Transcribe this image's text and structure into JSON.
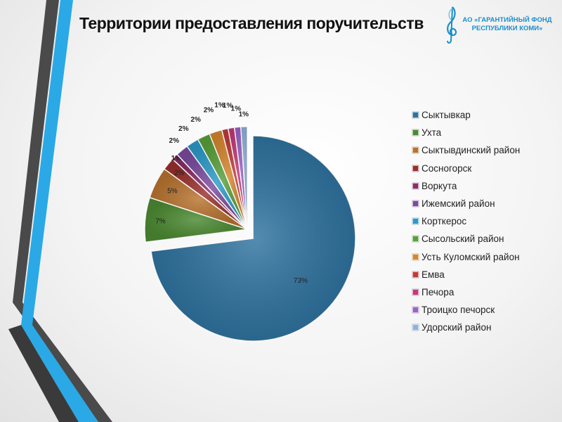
{
  "slide": {
    "title": "Территории предоставления поручительств"
  },
  "logo": {
    "line1": "АО «ГАРАНТИЙНЫЙ  ФОНД",
    "line2": "РЕСПУБЛИКИ  КОМИ»",
    "icon": "treble-clef-leaf-icon",
    "color": "#1d8ec9"
  },
  "chart_data": {
    "type": "pie",
    "title": "",
    "exploded_slice": "Сыктывкар",
    "legend_position": "right",
    "slices": [
      {
        "name": "Сыктывкар",
        "value": 73,
        "label": "73%",
        "color": "#2f73a0"
      },
      {
        "name": "Ухта",
        "value": 7,
        "label": "7%",
        "color": "#4c8a32"
      },
      {
        "name": "Сыктывдинский район",
        "value": 5,
        "label": "5%",
        "color": "#b8732e"
      },
      {
        "name": "Сосногорск",
        "value": 2,
        "label": "2%",
        "color": "#9a2f2c"
      },
      {
        "name": "Воркута",
        "value": 1,
        "label": "1%",
        "color": "#8a2e6b"
      },
      {
        "name": "Ижемский район",
        "value": 2,
        "label": "2%",
        "color": "#7a4b9e"
      },
      {
        "name": "Корткерос",
        "value": 2,
        "label": "2%",
        "color": "#2b9bc9"
      },
      {
        "name": "Сысольский район",
        "value": 2,
        "label": "2%",
        "color": "#58a03a"
      },
      {
        "name": "Усть Куломский район",
        "value": 2,
        "label": "2%",
        "color": "#d6862e"
      },
      {
        "name": "Емва",
        "value": 1,
        "label": "1%",
        "color": "#c23a38"
      },
      {
        "name": "Печора",
        "value": 1,
        "label": "1%",
        "color": "#c23a7a"
      },
      {
        "name": "Троицко печорск",
        "value": 1,
        "label": "1%",
        "color": "#9b62c8"
      },
      {
        "name": "Удорский район",
        "value": 1,
        "label": "1%",
        "color": "#8fb2d9"
      }
    ]
  }
}
